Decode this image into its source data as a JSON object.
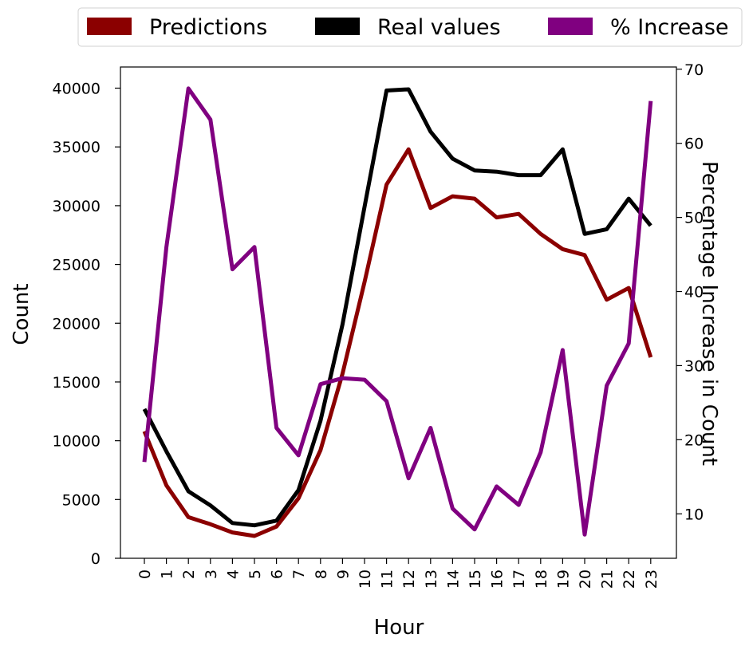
{
  "chart_data": {
    "type": "line",
    "title": "",
    "xlabel": "Hour",
    "ylabel": "Count",
    "y2label": "Percentage Increase in Count",
    "categories": [
      "0",
      "1",
      "2",
      "3",
      "4",
      "5",
      "6",
      "7",
      "8",
      "9",
      "10",
      "11",
      "12",
      "13",
      "14",
      "15",
      "16",
      "17",
      "18",
      "19",
      "20",
      "21",
      "22",
      "23"
    ],
    "ylim": [
      0,
      41800
    ],
    "yticks": [
      0,
      5000,
      10000,
      15000,
      20000,
      25000,
      30000,
      35000,
      40000
    ],
    "y2lim": [
      4,
      70.3
    ],
    "y2ticks": [
      10,
      20,
      30,
      40,
      50,
      60,
      70
    ],
    "grid": false,
    "legend_position": "top-center",
    "series": [
      {
        "name": "Predictions",
        "axis": "left",
        "color": "#8b0000",
        "values": [
          10800,
          6200,
          3500,
          2900,
          2200,
          1900,
          2700,
          5100,
          9200,
          15700,
          23500,
          31800,
          34800,
          29800,
          30800,
          30600,
          29000,
          29300,
          27600,
          26300,
          25800,
          22000,
          23000,
          17100
        ]
      },
      {
        "name": "Real values",
        "axis": "left",
        "color": "#000000",
        "values": [
          12700,
          9100,
          5700,
          4500,
          3000,
          2800,
          3200,
          5800,
          11700,
          19900,
          29900,
          39800,
          39900,
          36300,
          34000,
          33000,
          32900,
          32600,
          32600,
          34800,
          27600,
          28000,
          30600,
          28300
        ]
      },
      {
        "name": "% Increase",
        "axis": "right",
        "color": "#800080",
        "values": [
          17.0,
          46.0,
          67.4,
          63.2,
          43.0,
          46.0,
          21.6,
          17.9,
          27.5,
          28.3,
          28.1,
          25.2,
          14.8,
          21.6,
          10.7,
          7.9,
          13.7,
          11.2,
          18.3,
          32.1,
          7.2,
          27.3,
          33.0,
          65.7
        ]
      }
    ]
  }
}
